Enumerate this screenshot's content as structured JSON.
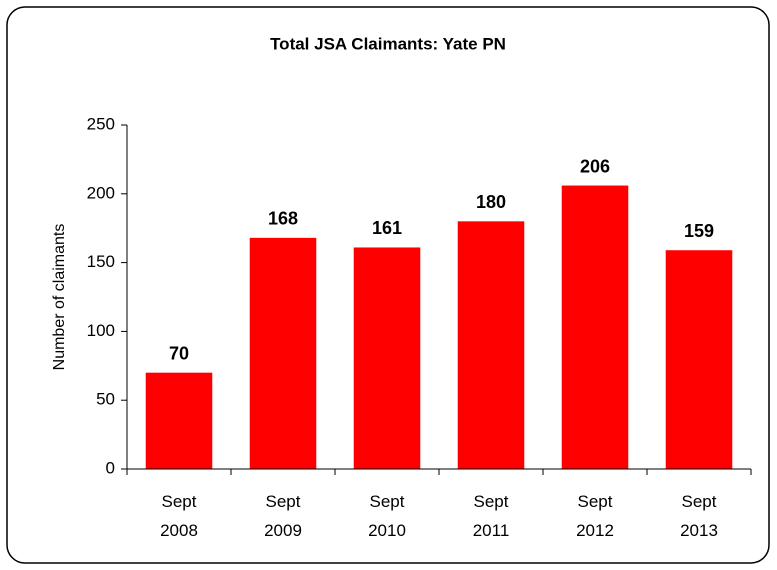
{
  "chart_data": {
    "type": "bar",
    "title": "Total JSA Claimants: Yate PN",
    "y_label": "Number of claimants",
    "categories": [
      "Sept 2008",
      "Sept 2009",
      "Sept 2010",
      "Sept 2011",
      "Sept 2012",
      "Sept 2013"
    ],
    "values": [
      70,
      168,
      161,
      180,
      206,
      159
    ],
    "color": "#ff0000",
    "ylim": [
      0,
      250
    ],
    "yticks": [
      0,
      50,
      100,
      150,
      200,
      250
    ],
    "grid": false
  }
}
